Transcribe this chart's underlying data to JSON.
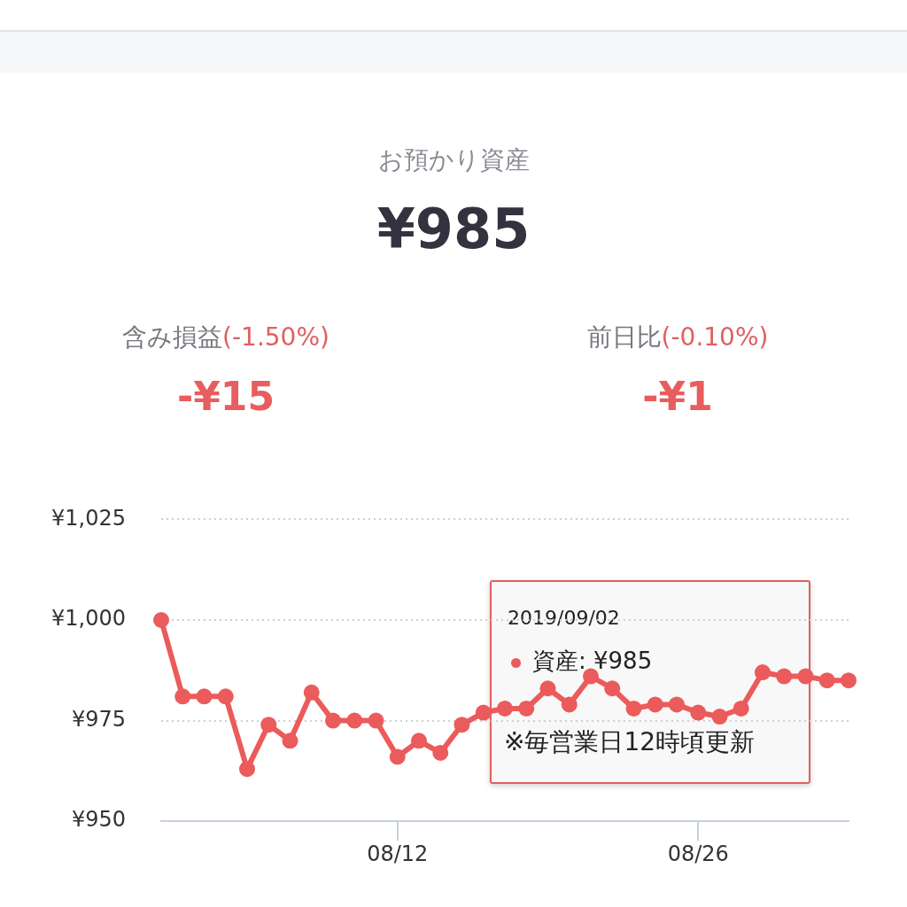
{
  "chart_data": {
    "type": "line",
    "title": "お預かり資産",
    "subtitle": "¥985",
    "annotations": [
      "含み損益",
      "(-1.50%)",
      "-¥15",
      "前日比",
      "(-0.10%)",
      "-¥1",
      "2019/09/02",
      "資産: ¥985",
      "※毎営業日12時頃更新"
    ],
    "categories": [
      null,
      null,
      null,
      null,
      null,
      null,
      null,
      null,
      null,
      null,
      null,
      "08/12",
      null,
      null,
      null,
      null,
      null,
      null,
      null,
      null,
      null,
      null,
      null,
      null,
      null,
      "08/26",
      null,
      null,
      null,
      null,
      null,
      null,
      null
    ],
    "series": [
      {
        "color": "#eb5b5b",
        "values": [
          1000,
          981,
          981,
          981,
          963,
          974,
          970,
          982,
          975,
          975,
          975,
          966,
          970,
          967,
          974,
          977,
          978,
          978,
          983,
          979,
          986,
          983,
          978,
          979,
          979,
          977,
          976,
          978,
          987,
          986,
          986,
          985,
          985
        ]
      }
    ],
    "ylim": [
      950,
      1025
    ],
    "yticks": [
      {
        "value": 950,
        "label": "¥950"
      },
      {
        "value": 975,
        "label": "¥975"
      },
      {
        "value": 1000,
        "label": "¥1,000"
      },
      {
        "value": 1025,
        "label": "¥1,025"
      }
    ],
    "grid": "y",
    "marker": "circle"
  }
}
